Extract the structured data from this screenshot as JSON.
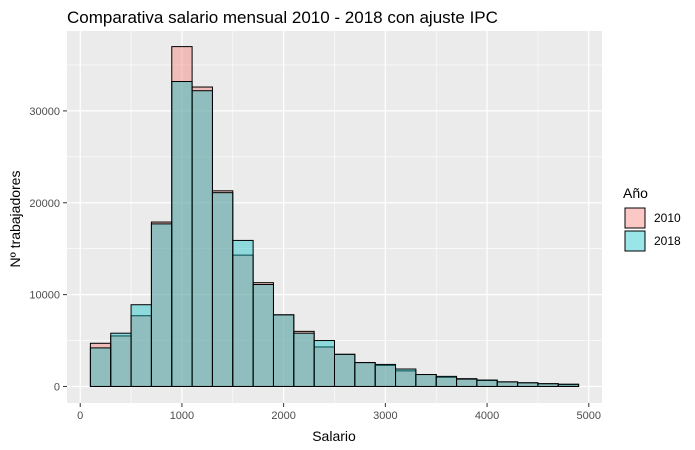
{
  "chart_data": {
    "type": "bar",
    "title": "Comparativa salario mensual 2010 - 2018 con ajuste IPC",
    "xlabel": "Salario",
    "ylabel": "Nº trabajadores",
    "xlim": [
      -130,
      5130
    ],
    "ylim": [
      -1800,
      38700
    ],
    "x_ticks": [
      0,
      1000,
      2000,
      3000,
      4000,
      5000
    ],
    "x_tick_labels": [
      "0",
      "1000",
      "2000",
      "3000",
      "4000",
      "5000"
    ],
    "y_ticks": [
      0,
      10000,
      20000,
      30000
    ],
    "y_tick_labels": [
      "0",
      "10000",
      "20000",
      "30000"
    ],
    "grid": true,
    "bin_width": 200,
    "bin_starts": [
      100,
      300,
      500,
      700,
      900,
      1100,
      1300,
      1500,
      1700,
      1900,
      2100,
      2300,
      2500,
      2700,
      2900,
      3100,
      3300,
      3500,
      3700,
      3900,
      4100,
      4300,
      4500,
      4700
    ],
    "legend": {
      "title": "Año",
      "position": "right"
    },
    "series": [
      {
        "name": "2010",
        "color": "#F8766D",
        "values": [
          4700,
          5500,
          7700,
          17900,
          37000,
          32600,
          21300,
          14300,
          11300,
          7800,
          6000,
          4300,
          3500,
          2600,
          2300,
          1700,
          1300,
          1000,
          850,
          650,
          500,
          400,
          300,
          200
        ]
      },
      {
        "name": "2018",
        "color": "#00BFC4",
        "values": [
          4200,
          5800,
          8900,
          17700,
          33200,
          32200,
          21100,
          15900,
          11100,
          7800,
          5800,
          5000,
          3500,
          2600,
          2400,
          1900,
          1300,
          1100,
          800,
          700,
          500,
          400,
          300,
          250
        ]
      }
    ]
  }
}
